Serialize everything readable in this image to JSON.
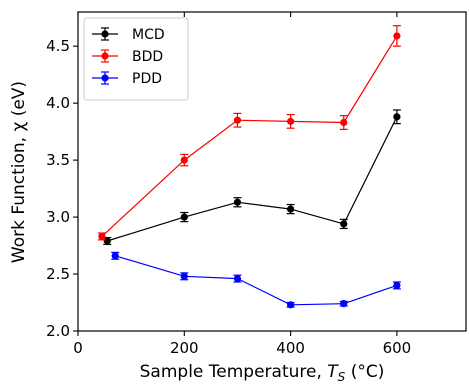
{
  "chart_data": {
    "type": "line",
    "xlabel": {
      "main": "Sample Temperature, ",
      "symbol": "T",
      "sub": "S",
      "unit": " (°C)"
    },
    "ylabel": "Work Function, χ (eV)",
    "xlim": [
      0,
      730
    ],
    "ylim": [
      2.0,
      4.8
    ],
    "x_ticks": [
      0,
      200,
      400,
      600
    ],
    "x_tick_labels": [
      "0",
      "200",
      "400",
      "600"
    ],
    "y_ticks": [
      2.0,
      2.5,
      3.0,
      3.5,
      4.0,
      4.5
    ],
    "y_tick_labels": [
      "2.0",
      "2.5",
      "3.0",
      "3.5",
      "4.0",
      "4.5"
    ],
    "grid": false,
    "legend_position": "top-left",
    "series": [
      {
        "name": "MCD",
        "color": "#000000",
        "points": [
          {
            "x": 55,
            "y": 2.79,
            "err": 0.03
          },
          {
            "x": 200,
            "y": 3.0,
            "err": 0.04
          },
          {
            "x": 300,
            "y": 3.13,
            "err": 0.04
          },
          {
            "x": 400,
            "y": 3.07,
            "err": 0.04
          },
          {
            "x": 500,
            "y": 2.94,
            "err": 0.04
          },
          {
            "x": 600,
            "y": 3.88,
            "err": 0.06
          }
        ]
      },
      {
        "name": "BDD",
        "color": "#ff0000",
        "points": [
          {
            "x": 45,
            "y": 2.83,
            "err": 0.03
          },
          {
            "x": 200,
            "y": 3.5,
            "err": 0.05
          },
          {
            "x": 300,
            "y": 3.85,
            "err": 0.06
          },
          {
            "x": 400,
            "y": 3.84,
            "err": 0.06
          },
          {
            "x": 500,
            "y": 3.83,
            "err": 0.06
          },
          {
            "x": 600,
            "y": 4.59,
            "err": 0.09
          }
        ]
      },
      {
        "name": "PDD",
        "color": "#0000ff",
        "points": [
          {
            "x": 70,
            "y": 2.66,
            "err": 0.03
          },
          {
            "x": 200,
            "y": 2.48,
            "err": 0.03
          },
          {
            "x": 300,
            "y": 2.46,
            "err": 0.03
          },
          {
            "x": 400,
            "y": 2.23,
            "err": 0.02
          },
          {
            "x": 500,
            "y": 2.24,
            "err": 0.02
          },
          {
            "x": 600,
            "y": 2.4,
            "err": 0.03
          }
        ]
      }
    ]
  }
}
